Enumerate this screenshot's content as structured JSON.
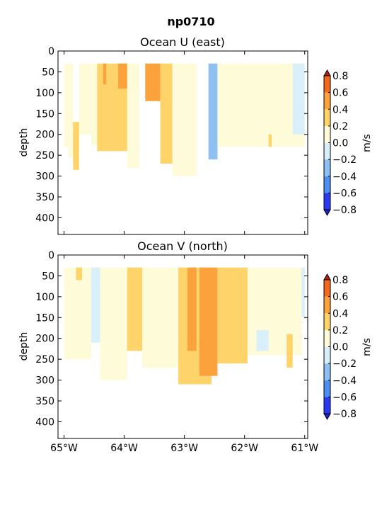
{
  "figure_title": "np0710",
  "chart_data": [
    {
      "type": "heatmap",
      "title": "Ocean U (east)",
      "xlabel": "",
      "ylabel": "depth",
      "x_ticks": [
        "65°W",
        "64°W",
        "63°W",
        "62°W",
        "61°W"
      ],
      "x_tick_values": [
        -65,
        -64,
        -63,
        -62,
        -61
      ],
      "xlim": [
        -65.1,
        -60.95
      ],
      "y_ticks": [
        "0",
        "50",
        "100",
        "150",
        "200",
        "250",
        "300",
        "350",
        "400"
      ],
      "ylim": [
        440,
        0
      ],
      "colorbar_label": "m/s",
      "colorbar_ticks": [
        "0.8",
        "0.6",
        "0.4",
        "0.2",
        "0.0",
        "−0.2",
        "−0.4",
        "−0.6",
        "−0.8"
      ],
      "levels": [
        -0.8,
        -0.6,
        -0.4,
        -0.2,
        0.0,
        0.2,
        0.4,
        0.6,
        0.8
      ],
      "colors": [
        "#2b3bf2",
        "#4f8ff2",
        "#8ec0f2",
        "#d9eff9",
        "#fefbd9",
        "#fdd36a",
        "#fba23c",
        "#f26a1f"
      ],
      "columns": [
        {
          "x0": -65.0,
          "x1": -64.93,
          "top": 30,
          "bottom": 230,
          "value": 0.1
        },
        {
          "x0": -64.93,
          "x1": -64.85,
          "top": 30,
          "bottom": 255,
          "value": 0.1
        },
        {
          "x0": -64.85,
          "x1": -64.75,
          "top": 170,
          "bottom": 285,
          "value": 0.3
        },
        {
          "x0": -64.75,
          "x1": -64.55,
          "top": 30,
          "bottom": 200,
          "value": 0.1
        },
        {
          "x0": -64.55,
          "x1": -64.45,
          "top": 30,
          "bottom": 225,
          "value": 0.1
        },
        {
          "x0": -64.45,
          "x1": -64.2,
          "top": 30,
          "bottom": 240,
          "value": 0.3
        },
        {
          "x0": -64.35,
          "x1": -64.3,
          "top": 30,
          "bottom": 80,
          "value": 0.5
        },
        {
          "x0": -64.2,
          "x1": -63.95,
          "top": 30,
          "bottom": 240,
          "value": 0.3
        },
        {
          "x0": -64.1,
          "x1": -63.95,
          "top": 30,
          "bottom": 90,
          "value": 0.5
        },
        {
          "x0": -63.95,
          "x1": -63.75,
          "top": 30,
          "bottom": 280,
          "value": 0.1
        },
        {
          "x0": -63.65,
          "x1": -63.4,
          "top": 30,
          "bottom": 120,
          "value": 0.5
        },
        {
          "x0": -63.4,
          "x1": -63.2,
          "top": 30,
          "bottom": 270,
          "value": 0.3
        },
        {
          "x0": -63.2,
          "x1": -62.8,
          "top": 30,
          "bottom": 300,
          "value": 0.1
        },
        {
          "x0": -62.6,
          "x1": -62.45,
          "top": 30,
          "bottom": 260,
          "value": -0.3
        },
        {
          "x0": -62.45,
          "x1": -61.0,
          "top": 30,
          "bottom": 230,
          "value": 0.1
        },
        {
          "x0": -61.6,
          "x1": -61.55,
          "top": 200,
          "bottom": 230,
          "value": 0.3
        },
        {
          "x0": -61.2,
          "x1": -61.0,
          "top": 30,
          "bottom": 200,
          "value": -0.1
        }
      ]
    },
    {
      "type": "heatmap",
      "title": "Ocean V (north)",
      "xlabel": "",
      "ylabel": "depth",
      "x_ticks": [
        "65°W",
        "64°W",
        "63°W",
        "62°W",
        "61°W"
      ],
      "x_tick_values": [
        -65,
        -64,
        -63,
        -62,
        -61
      ],
      "xlim": [
        -65.1,
        -60.95
      ],
      "y_ticks": [
        "0",
        "50",
        "100",
        "150",
        "200",
        "250",
        "300",
        "350",
        "400"
      ],
      "ylim": [
        440,
        0
      ],
      "colorbar_label": "m/s",
      "colorbar_ticks": [
        "0.8",
        "0.6",
        "0.4",
        "0.2",
        "0.0",
        "−0.2",
        "−0.4",
        "−0.6",
        "−0.8"
      ],
      "levels": [
        -0.8,
        -0.6,
        -0.4,
        -0.2,
        0.0,
        0.2,
        0.4,
        0.6,
        0.8
      ],
      "colors": [
        "#2b3bf2",
        "#4f8ff2",
        "#8ec0f2",
        "#d9eff9",
        "#fefbd9",
        "#fdd36a",
        "#fba23c",
        "#f26a1f"
      ],
      "columns": [
        {
          "x0": -65.0,
          "x1": -64.55,
          "top": 30,
          "bottom": 250,
          "value": 0.1
        },
        {
          "x0": -64.8,
          "x1": -64.7,
          "top": 30,
          "bottom": 60,
          "value": 0.3
        },
        {
          "x0": -64.55,
          "x1": -64.4,
          "top": 30,
          "bottom": 210,
          "value": -0.1
        },
        {
          "x0": -64.4,
          "x1": -63.95,
          "top": 30,
          "bottom": 300,
          "value": 0.1
        },
        {
          "x0": -63.95,
          "x1": -63.7,
          "top": 30,
          "bottom": 230,
          "value": 0.3
        },
        {
          "x0": -63.7,
          "x1": -63.1,
          "top": 30,
          "bottom": 270,
          "value": 0.1
        },
        {
          "x0": -63.1,
          "x1": -62.55,
          "top": 30,
          "bottom": 310,
          "value": 0.3
        },
        {
          "x0": -62.95,
          "x1": -62.8,
          "top": 30,
          "bottom": 230,
          "value": 0.5
        },
        {
          "x0": -62.75,
          "x1": -62.45,
          "top": 30,
          "bottom": 290,
          "value": 0.5
        },
        {
          "x0": -62.45,
          "x1": -61.95,
          "top": 30,
          "bottom": 260,
          "value": 0.3
        },
        {
          "x0": -61.95,
          "x1": -61.05,
          "top": 30,
          "bottom": 240,
          "value": 0.1
        },
        {
          "x0": -61.8,
          "x1": -61.6,
          "top": 180,
          "bottom": 230,
          "value": -0.1
        },
        {
          "x0": -61.3,
          "x1": -61.2,
          "top": 190,
          "bottom": 270,
          "value": 0.3
        },
        {
          "x0": -61.05,
          "x1": -61.0,
          "top": 30,
          "bottom": 150,
          "value": -0.1
        }
      ]
    }
  ]
}
